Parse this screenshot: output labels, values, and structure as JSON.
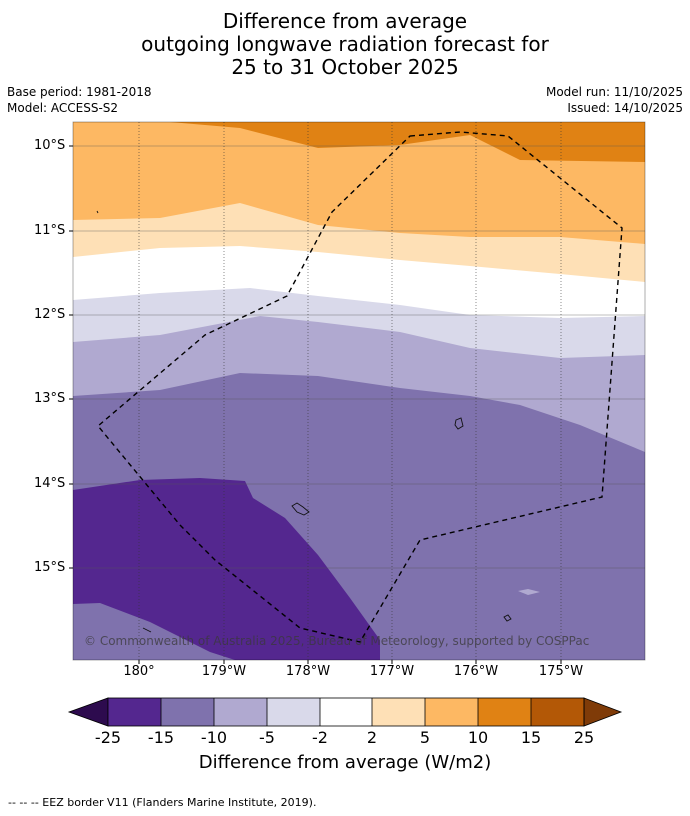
{
  "title": {
    "line1": "Difference from average",
    "line2": "outgoing longwave radiation forecast for",
    "line3": "25 to 31 October 2025"
  },
  "meta": {
    "base_period": "Base period: 1981-2018",
    "model": "Model: ACCESS-S2",
    "model_run": "Model run: 11/10/2025",
    "issued": "Issued: 14/10/2025"
  },
  "map": {
    "lat_labels": [
      "10°S",
      "11°S",
      "12°S",
      "13°S",
      "14°S",
      "15°S"
    ],
    "lon_labels": [
      "180°",
      "179°W",
      "178°W",
      "177°W",
      "176°W",
      "175°W"
    ],
    "copyright": "© Commonwealth of Australia 2025, Bureau of Meteorology, supported by COSPPac"
  },
  "colorbar": {
    "ticks": [
      "-25",
      "-15",
      "-10",
      "-5",
      "-2",
      "2",
      "5",
      "10",
      "15",
      "25"
    ],
    "colors": {
      "below_min": "#2d0b4e",
      "c1": "#54278f",
      "c2": "#7f72ad",
      "c3": "#b0a9d0",
      "c4": "#d9d9ea",
      "c5": "#ffffff",
      "c6": "#fee0b6",
      "c7": "#fdb863",
      "c8": "#e08214",
      "c9": "#b35806",
      "above_max": "#7f3b08"
    },
    "label": "Difference from average (W/m2)"
  },
  "footnote": "--  --  -- EEZ border V11 (Flanders Marine Institute, 2019)."
}
